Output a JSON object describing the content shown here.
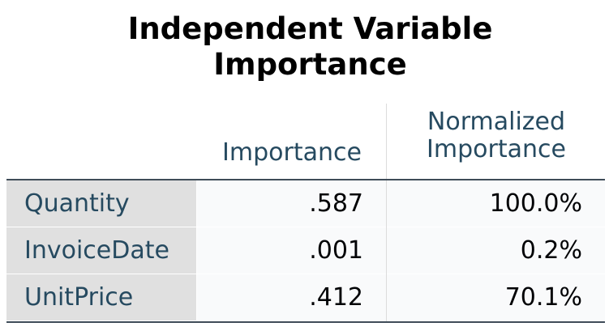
{
  "table": {
    "title_line1": "Independent Variable",
    "title_line2": "Importance",
    "columns": {
      "importance": "Importance",
      "normalized_line1": "Normalized",
      "normalized_line2": "Importance"
    },
    "rows": [
      {
        "label": "Quantity",
        "importance": ".587",
        "normalized": "100.0%"
      },
      {
        "label": "InvoiceDate",
        "importance": ".001",
        "normalized": "0.2%"
      },
      {
        "label": "UnitPrice",
        "importance": ".412",
        "normalized": "70.1%"
      }
    ]
  },
  "colors": {
    "label_text": "#264a60",
    "value_text": "#010205",
    "label_background": "#e0e0e0",
    "value_background": "#f9fafb",
    "rule": "#3f4c58"
  }
}
